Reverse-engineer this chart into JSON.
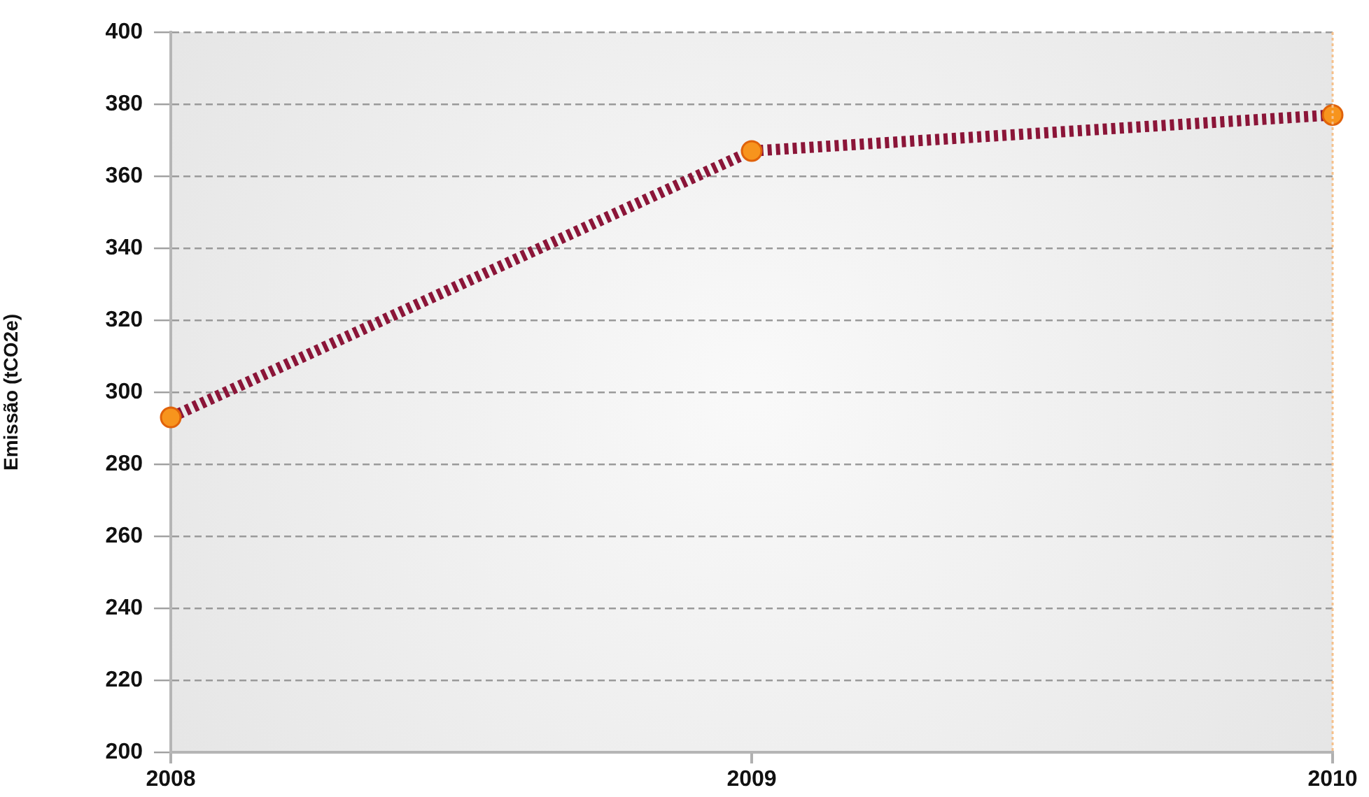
{
  "chart_data": {
    "type": "line",
    "ylabel": "Emissão (tCO2e)",
    "categories": [
      "2008",
      "2009",
      "2010"
    ],
    "series": [
      {
        "color": "#8b1538",
        "values": [
          293,
          367,
          377
        ]
      }
    ],
    "ylim": [
      200,
      400
    ],
    "yticks": [
      200,
      220,
      240,
      260,
      280,
      300,
      320,
      340,
      360,
      380,
      400
    ],
    "grid": "y",
    "legend": false,
    "marker": "circle",
    "line_style": "dashed"
  }
}
